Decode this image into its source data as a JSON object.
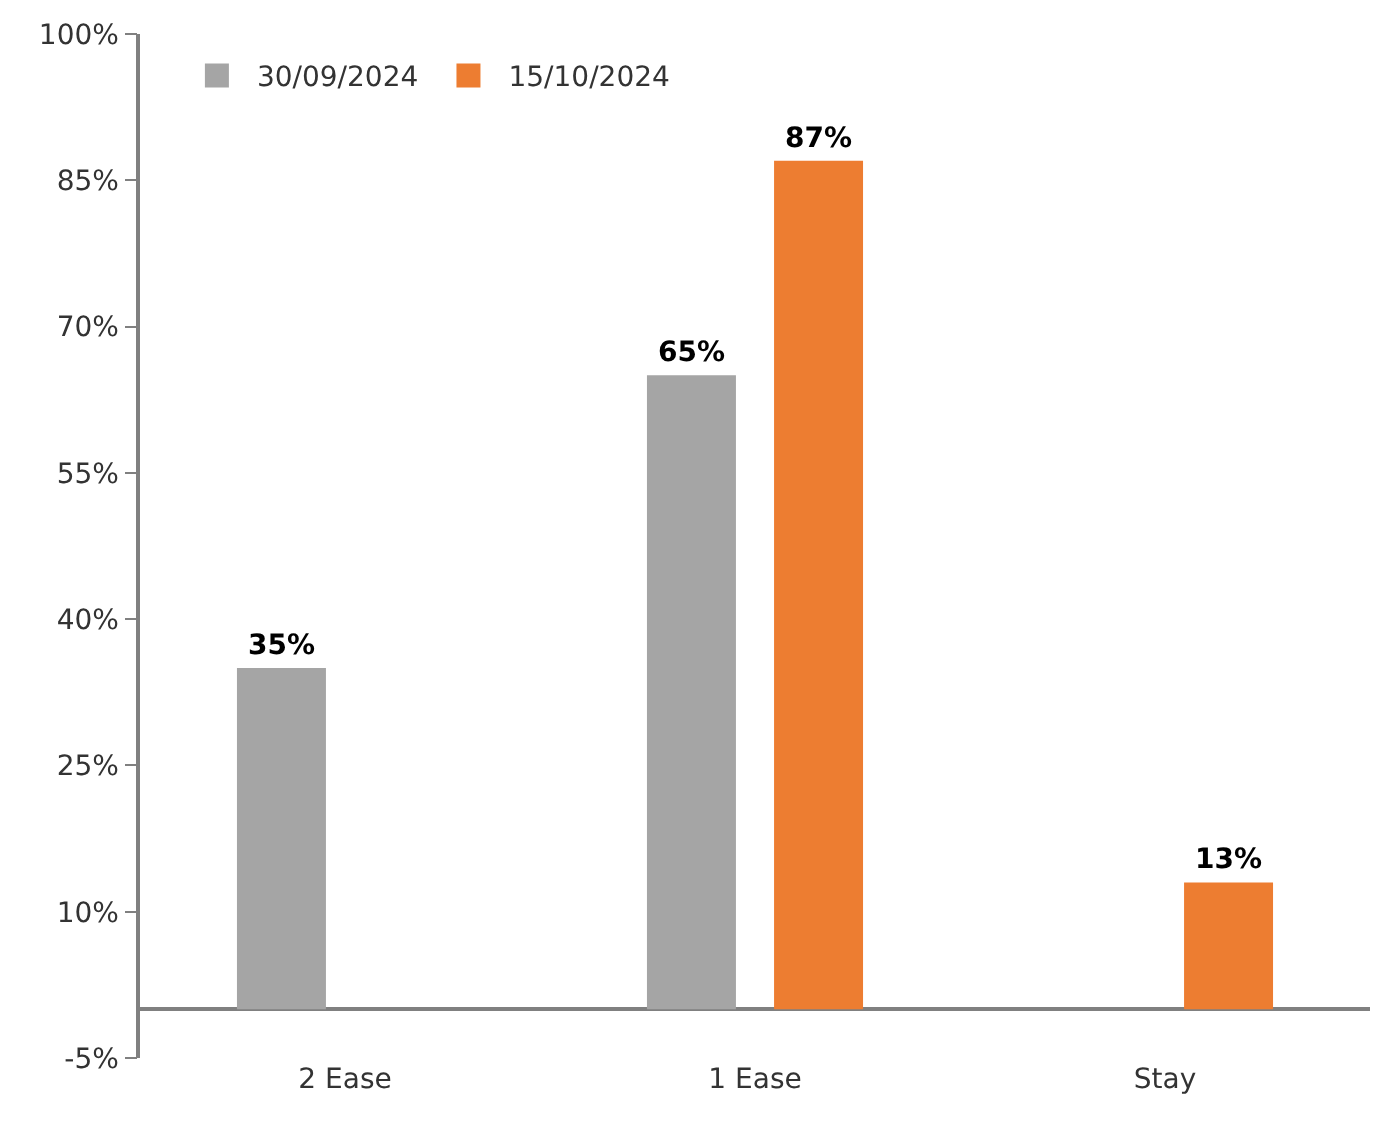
{
  "chart_data": {
    "type": "bar",
    "categories": [
      "2 Ease",
      "1 Ease",
      "Stay"
    ],
    "series": [
      {
        "name": "30/09/2024",
        "color": "#a5a5a5",
        "values": [
          35,
          65,
          null
        ]
      },
      {
        "name": "15/10/2024",
        "color": "#ed7d31",
        "values": [
          null,
          87,
          13
        ]
      }
    ],
    "ylim": [
      -5,
      100
    ],
    "yticks": [
      {
        "value": -5,
        "label": "-5%"
      },
      {
        "value": 10,
        "label": "10%"
      },
      {
        "value": 25,
        "label": "25%"
      },
      {
        "value": 40,
        "label": "40%"
      },
      {
        "value": 55,
        "label": "55%"
      },
      {
        "value": 70,
        "label": "70%"
      },
      {
        "value": 85,
        "label": "85%"
      },
      {
        "value": 100,
        "label": "100%"
      }
    ],
    "value_labels": [
      [
        "35%",
        "65%",
        null
      ],
      [
        null,
        "87%",
        "13%"
      ]
    ],
    "grid": false,
    "legend": "top left"
  }
}
